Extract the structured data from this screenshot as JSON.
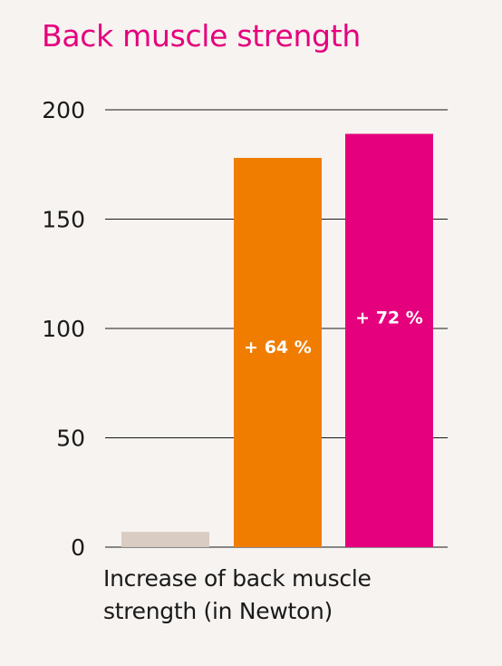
{
  "chart_data": {
    "type": "bar",
    "title": "Back muscle strength",
    "xlabel": "Increase of back muscle strength (in Newton)",
    "ylabel": "",
    "ylim": [
      0,
      200
    ],
    "yticks": [
      0,
      50,
      100,
      150,
      200
    ],
    "grid": true,
    "legend": "none",
    "categories": [
      "",
      "",
      ""
    ],
    "values": [
      7,
      178,
      189
    ],
    "data_labels": [
      "",
      "+ 64 %",
      "+ 72 %"
    ],
    "colors": [
      "#d8ccc3",
      "#f07d00",
      "#e5007d"
    ]
  },
  "colors": {
    "title": "#e5007d",
    "background": "#f6f3f0",
    "gridline": "#1a1a1a",
    "text": "#1a1a1a"
  }
}
